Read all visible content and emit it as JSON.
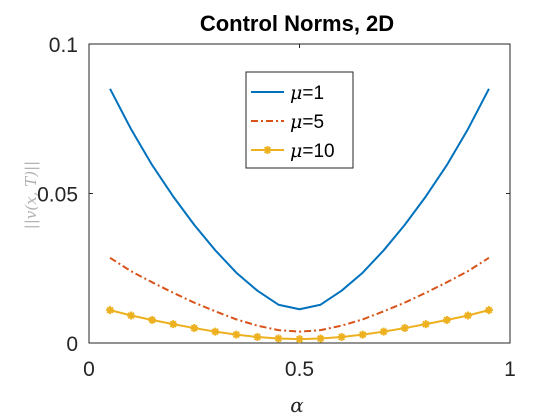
{
  "chart_data": {
    "type": "line",
    "title": "Control Norms, 2D",
    "xlabel": "α",
    "ylabel": "||v(x, T)||",
    "xlim": [
      0,
      1
    ],
    "ylim": [
      0,
      0.1
    ],
    "xticks": [
      0,
      0.5,
      1
    ],
    "yticks": [
      0,
      0.05,
      0.1
    ],
    "xtick_labels": [
      "0",
      "0.5",
      "1"
    ],
    "ytick_labels": [
      "0",
      "0.05",
      "0.1"
    ],
    "legend_position": "top-center",
    "grid": false,
    "x": [
      0.05,
      0.1,
      0.15,
      0.2,
      0.25,
      0.3,
      0.35,
      0.4,
      0.45,
      0.5,
      0.55,
      0.6,
      0.65,
      0.7,
      0.75,
      0.8,
      0.85,
      0.9,
      0.95
    ],
    "series": [
      {
        "name": "μ=1",
        "legend_symbol": "μ",
        "legend_value": "=1",
        "color": "#0072BD",
        "style": "solid",
        "marker": "none",
        "values": [
          0.085,
          0.0715,
          0.0595,
          0.049,
          0.0395,
          0.031,
          0.0235,
          0.0175,
          0.0128,
          0.0113,
          0.0128,
          0.0175,
          0.0235,
          0.031,
          0.0395,
          0.049,
          0.0595,
          0.0715,
          0.085
        ]
      },
      {
        "name": "μ=5",
        "legend_symbol": "μ",
        "legend_value": "=5",
        "color": "#D95319",
        "style": "dashdot",
        "marker": "none",
        "values": [
          0.0285,
          0.024,
          0.0203,
          0.0168,
          0.0135,
          0.0106,
          0.0079,
          0.0058,
          0.0043,
          0.0038,
          0.0043,
          0.0058,
          0.0079,
          0.0106,
          0.0135,
          0.0168,
          0.0203,
          0.024,
          0.0285
        ]
      },
      {
        "name": "μ=10",
        "legend_symbol": "μ",
        "legend_value": "=10",
        "color": "#EDB120",
        "style": "solid",
        "marker": "asterisk",
        "values": [
          0.011,
          0.0092,
          0.0077,
          0.0063,
          0.005,
          0.0038,
          0.0028,
          0.002,
          0.0015,
          0.0013,
          0.0015,
          0.002,
          0.0028,
          0.0038,
          0.005,
          0.0063,
          0.0077,
          0.0092,
          0.011
        ]
      }
    ]
  }
}
